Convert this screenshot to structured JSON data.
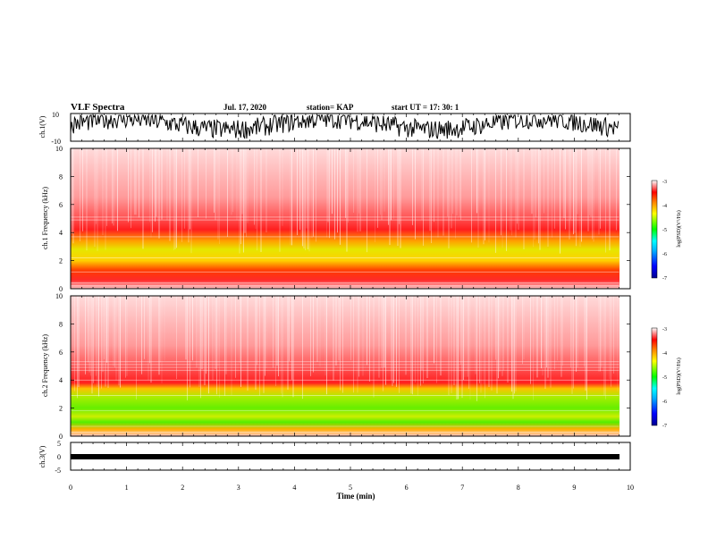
{
  "header": {
    "title": "VLF Spectra",
    "date": "Jul. 17, 2020",
    "station": "station= KAP",
    "start": "start  UT =   17: 30: 1"
  },
  "chart_data": [
    {
      "type": "line",
      "panel": "ch1-waveform",
      "ylabel": "ch.1(V)",
      "ylim": [
        -10,
        10
      ],
      "yticks": [
        "10",
        "-10"
      ],
      "xlim": [
        0,
        10
      ],
      "data_end_min": 9.8,
      "color": "#000000"
    },
    {
      "type": "heatmap",
      "panel": "ch1-spectrogram",
      "ylabel": "ch.1 Frequency (kHz)",
      "ylim": [
        0,
        10
      ],
      "yticks": [
        "0",
        "2",
        "4",
        "6",
        "8",
        "10"
      ],
      "xlim": [
        0,
        10
      ],
      "data_end_min": 9.8,
      "colorbar": {
        "label": "log(PSD)(V²/Hz)",
        "range": [
          -7,
          -3
        ],
        "ticks": [
          "-3",
          "-4",
          "-5",
          "-6",
          "-7"
        ]
      }
    },
    {
      "type": "heatmap",
      "panel": "ch2-spectrogram",
      "ylabel": "ch.2 Frequency (kHz)",
      "ylim": [
        0,
        10
      ],
      "yticks": [
        "0",
        "2",
        "4",
        "6",
        "8",
        "10"
      ],
      "xlim": [
        0,
        10
      ],
      "data_end_min": 9.8,
      "colorbar": {
        "label": "log(PSD)(V²/Hz)",
        "range": [
          -7,
          -3
        ],
        "ticks": [
          "-3",
          "-4",
          "-5",
          "-6",
          "-7"
        ]
      }
    },
    {
      "type": "line",
      "panel": "ch3-waveform",
      "ylabel": "ch.3(V)",
      "ylim": [
        -5,
        5
      ],
      "yticks": [
        "5",
        "0",
        "-5"
      ],
      "xlim": [
        0,
        10
      ],
      "data_end_min": 9.8,
      "approx_level": 0,
      "color": "#000000"
    }
  ],
  "xaxis": {
    "label": "Time  (min)",
    "ticks": [
      "0",
      "1",
      "2",
      "3",
      "4",
      "5",
      "6",
      "7",
      "8",
      "9",
      "10"
    ]
  },
  "colors": {
    "cmap": [
      "#00008b",
      "#0000ff",
      "#00a0ff",
      "#00ffff",
      "#00ff00",
      "#ffff00",
      "#ff8000",
      "#ff0000",
      "#ffffff"
    ]
  }
}
